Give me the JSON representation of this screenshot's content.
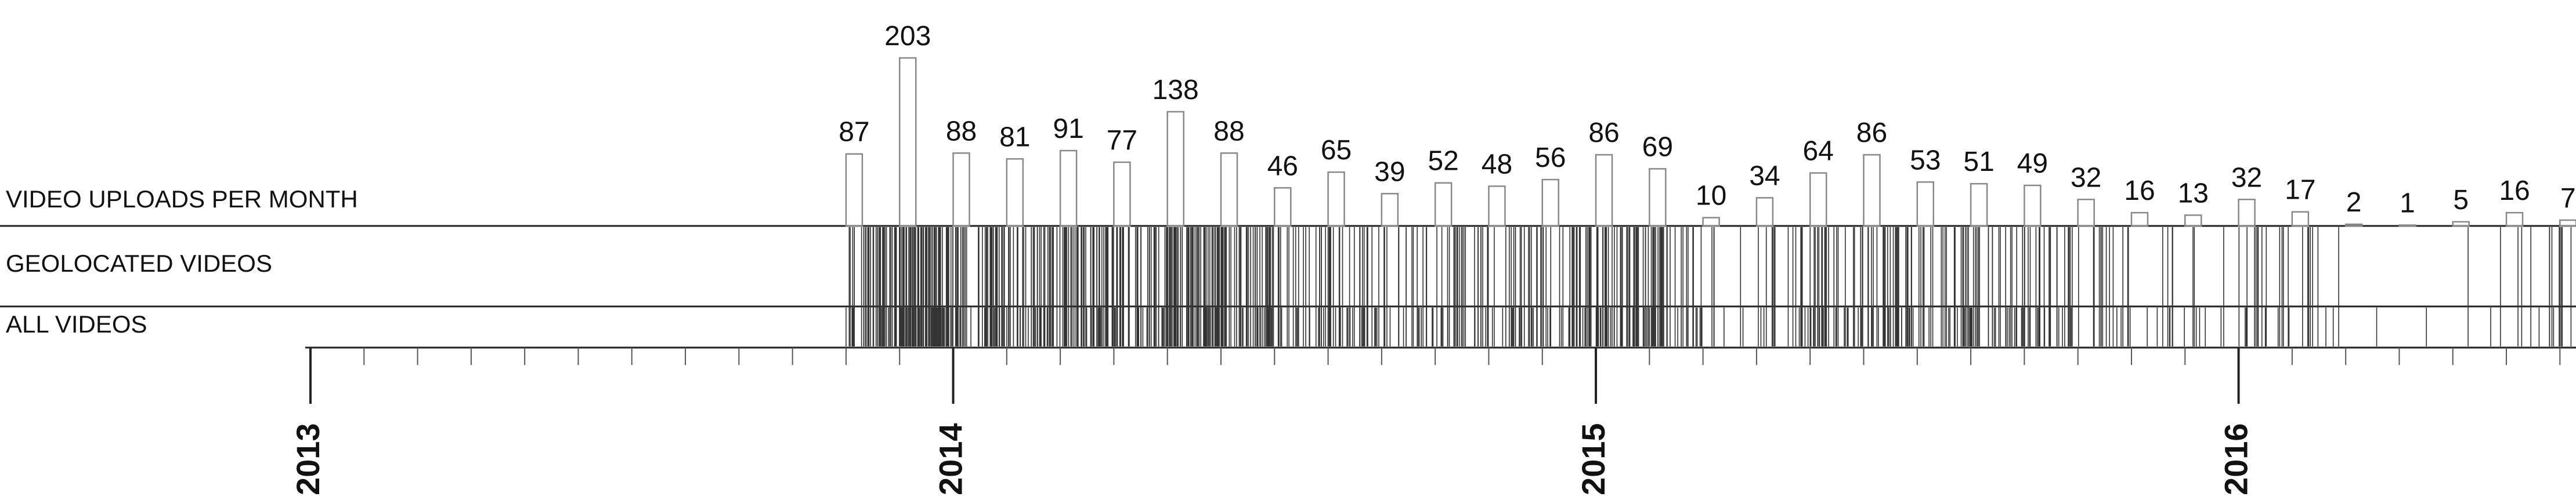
{
  "chart_data": {
    "type": "bar",
    "row_labels": [
      "VIDEO UPLOADS PER MONTH",
      "GEOLOCATED VIDEOS",
      "ALL VIDEOS"
    ],
    "categories": [
      null,
      null,
      null,
      null,
      null,
      null,
      null,
      null,
      null,
      null,
      null,
      null,
      null,
      null,
      null,
      null,
      null,
      null,
      null,
      null,
      null,
      null,
      null,
      null,
      null,
      null,
      null,
      null,
      null,
      null,
      null,
      null,
      null
    ],
    "x": [
      10,
      11,
      12,
      13,
      14,
      15,
      16,
      17,
      18,
      19,
      20,
      21,
      22,
      23,
      24,
      25,
      26,
      27,
      28,
      29,
      30,
      31,
      32,
      33,
      34,
      35,
      36,
      37,
      38,
      39,
      40,
      41,
      42
    ],
    "values": [
      87,
      203,
      88,
      81,
      91,
      77,
      138,
      88,
      46,
      65,
      39,
      52,
      48,
      56,
      86,
      69,
      10,
      34,
      64,
      86,
      53,
      51,
      49,
      32,
      16,
      13,
      32,
      17,
      2,
      1,
      5,
      16,
      7
    ],
    "color": "#888888",
    "xlim": [
      0,
      42.3
    ],
    "xticks": [
      {
        "value": 0,
        "label": "2013"
      },
      {
        "value": 12,
        "label": "2014"
      },
      {
        "value": 24,
        "label": "2015"
      },
      {
        "value": 36,
        "label": "2016"
      }
    ],
    "ylim": [
      0,
      210
    ]
  }
}
